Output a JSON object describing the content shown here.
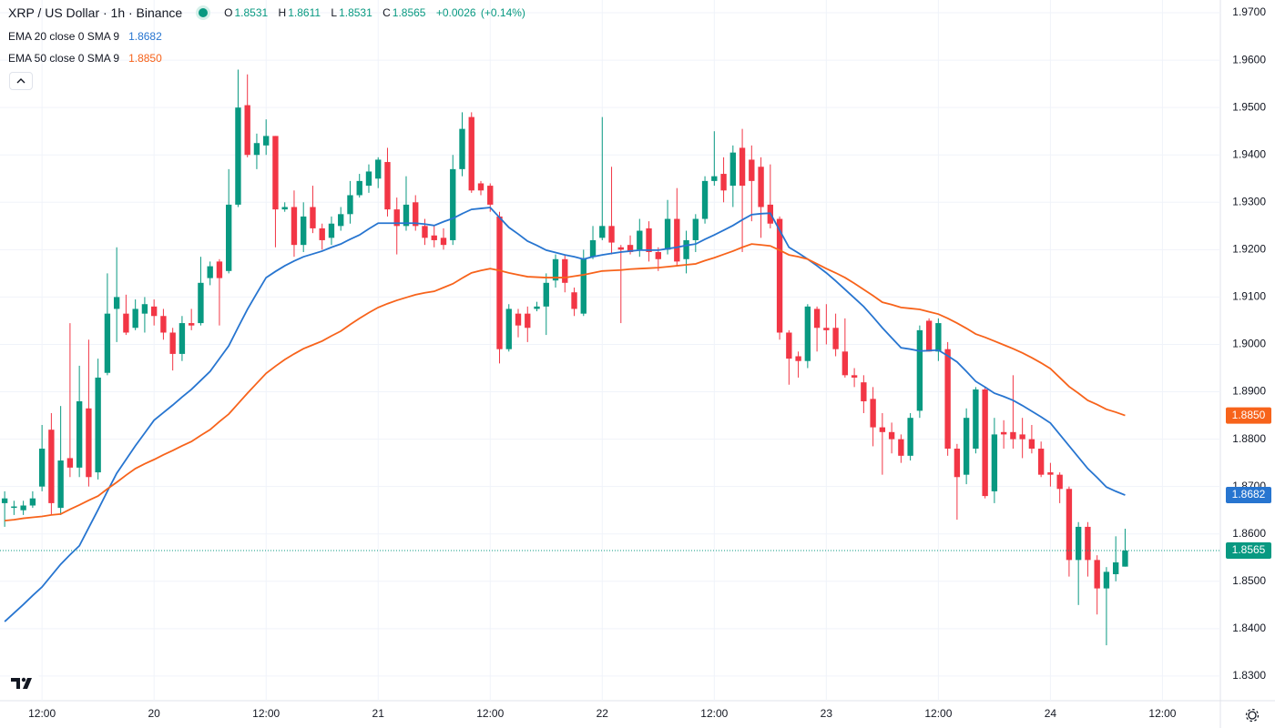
{
  "chart_data": {
    "type": "candlestick",
    "title": "XRP / US Dollar · 1h · Binance",
    "readout": [
      {
        "label": "O",
        "value": 1.8531
      },
      {
        "label": "H",
        "value": 1.8611
      },
      {
        "label": "L",
        "value": 1.8531
      },
      {
        "label": "C",
        "value": 1.8565
      }
    ],
    "change": "+0.0026",
    "change_percent": "(+0.14%)",
    "up_color": "#089981",
    "down_color": "#f23645",
    "last_price_label": "1.8565",
    "open": [
      1.8665,
      1.8655,
      1.865,
      1.866,
      1.87,
      1.882,
      1.8655,
      1.876,
      1.874,
      1.8865,
      1.873,
      1.894,
      1.9075,
      1.9065,
      1.9035,
      1.9065,
      1.908,
      1.906,
      1.9025,
      1.898,
      1.9045,
      1.9045,
      1.914,
      1.9175,
      1.9155,
      1.9295,
      1.9505,
      1.94,
      1.942,
      1.944,
      1.9285,
      1.929,
      1.921,
      1.929,
      1.9245,
      1.9225,
      1.925,
      1.9275,
      1.9315,
      1.9335,
      1.935,
      1.9385,
      1.9285,
      1.925,
      1.93,
      1.925,
      1.923,
      1.9225,
      1.922,
      1.937,
      1.948,
      1.934,
      1.9335,
      1.927,
      1.899,
      1.9065,
      1.9065,
      1.9075,
      1.908,
      1.9135,
      1.918,
      1.911,
      1.9065,
      1.9185,
      1.9225,
      1.925,
      1.9205,
      1.921,
      1.92,
      1.9245,
      1.9195,
      1.92,
      1.9265,
      1.918,
      1.922,
      1.9265,
      1.9345,
      1.936,
      1.9335,
      1.9415,
      1.939,
      1.9375,
      1.9295,
      1.9265,
      1.9025,
      1.8975,
      1.8965,
      1.9075,
      1.9035,
      1.9035,
      1.8985,
      1.8935,
      1.892,
      1.8885,
      1.8825,
      1.8815,
      1.88,
      1.8765,
      1.886,
      1.905,
      1.8985,
      1.899,
      1.878,
      1.8725,
      1.878,
      1.8905,
      1.869,
      1.8815,
      1.8815,
      1.881,
      1.88,
      1.878,
      1.873,
      1.8725,
      1.8695,
      1.8545,
      1.8615,
      1.8545,
      1.8485,
      1.8515,
      1.8531
    ],
    "high": [
      1.869,
      1.867,
      1.867,
      1.869,
      1.883,
      1.8855,
      1.887,
      1.9045,
      1.8955,
      1.901,
      1.897,
      1.915,
      1.9205,
      1.9105,
      1.9095,
      1.91,
      1.9095,
      1.9075,
      1.9035,
      1.906,
      1.9075,
      1.9185,
      1.9175,
      1.918,
      1.937,
      1.958,
      1.957,
      1.9445,
      1.9475,
      1.944,
      1.93,
      1.9325,
      1.93,
      1.9335,
      1.9255,
      1.927,
      1.929,
      1.9345,
      1.936,
      1.938,
      1.9395,
      1.9415,
      1.931,
      1.9355,
      1.9315,
      1.9265,
      1.925,
      1.9245,
      1.94,
      1.949,
      1.949,
      1.9345,
      1.934,
      1.928,
      1.9085,
      1.9075,
      1.908,
      1.909,
      1.915,
      1.919,
      1.919,
      1.912,
      1.92,
      1.925,
      1.948,
      1.9375,
      1.921,
      1.923,
      1.9265,
      1.926,
      1.9205,
      1.9305,
      1.933,
      1.924,
      1.9275,
      1.9355,
      1.945,
      1.9395,
      1.942,
      1.9455,
      1.942,
      1.9395,
      1.938,
      1.927,
      1.903,
      1.8985,
      1.9085,
      1.908,
      1.9085,
      1.9065,
      1.9055,
      1.895,
      1.8935,
      1.891,
      1.8855,
      1.8835,
      1.881,
      1.8855,
      1.904,
      1.9055,
      1.9055,
      1.9005,
      1.879,
      1.8865,
      1.891,
      1.891,
      1.8845,
      1.884,
      1.8935,
      1.8845,
      1.883,
      1.8795,
      1.875,
      1.873,
      1.87,
      1.8625,
      1.8625,
      1.8555,
      1.853,
      1.8595,
      1.8611
    ],
    "low": [
      1.8615,
      1.864,
      1.864,
      1.8655,
      1.869,
      1.864,
      1.864,
      1.872,
      1.872,
      1.87,
      1.8715,
      1.8935,
      1.9005,
      1.902,
      1.903,
      1.9025,
      1.904,
      1.901,
      1.8945,
      1.8965,
      1.903,
      1.904,
      1.9125,
      1.904,
      1.915,
      1.929,
      1.9395,
      1.937,
      1.94,
      1.9205,
      1.928,
      1.9185,
      1.9195,
      1.9235,
      1.92,
      1.921,
      1.924,
      1.9255,
      1.931,
      1.932,
      1.933,
      1.927,
      1.919,
      1.924,
      1.924,
      1.921,
      1.9205,
      1.92,
      1.921,
      1.9355,
      1.932,
      1.9315,
      1.928,
      1.896,
      1.8985,
      1.9015,
      1.9005,
      1.907,
      1.902,
      1.912,
      1.911,
      1.906,
      1.906,
      1.918,
      1.922,
      1.919,
      1.9045,
      1.919,
      1.9185,
      1.9175,
      1.9155,
      1.919,
      1.9165,
      1.915,
      1.9195,
      1.9255,
      1.9335,
      1.93,
      1.929,
      1.9195,
      1.926,
      1.9225,
      1.9245,
      1.901,
      1.8915,
      1.893,
      1.895,
      1.8985,
      1.9,
      1.8975,
      1.893,
      1.891,
      1.8855,
      1.8785,
      1.8725,
      1.877,
      1.875,
      1.8755,
      1.8845,
      1.8985,
      1.8965,
      1.8765,
      1.863,
      1.8705,
      1.877,
      1.8675,
      1.8665,
      1.878,
      1.878,
      1.876,
      1.877,
      1.872,
      1.87,
      1.8665,
      1.851,
      1.845,
      1.851,
      1.843,
      1.8365,
      1.85,
      1.8531
    ],
    "close": [
      1.8675,
      1.8658,
      1.866,
      1.8675,
      1.878,
      1.8665,
      1.8755,
      1.874,
      1.888,
      1.872,
      1.893,
      1.9065,
      1.91,
      1.9025,
      1.9075,
      1.9085,
      1.906,
      1.9025,
      1.898,
      1.9045,
      1.904,
      1.913,
      1.9165,
      1.914,
      1.9295,
      1.95,
      1.94,
      1.9425,
      1.944,
      1.9285,
      1.929,
      1.921,
      1.927,
      1.9245,
      1.922,
      1.9255,
      1.9275,
      1.9315,
      1.9345,
      1.9365,
      1.939,
      1.9285,
      1.925,
      1.9295,
      1.925,
      1.9225,
      1.922,
      1.921,
      1.937,
      1.9455,
      1.9325,
      1.9325,
      1.9295,
      1.899,
      1.9075,
      1.904,
      1.9035,
      1.908,
      1.913,
      1.918,
      1.913,
      1.9075,
      1.918,
      1.922,
      1.925,
      1.9215,
      1.92,
      1.9195,
      1.924,
      1.9195,
      1.918,
      1.9265,
      1.9175,
      1.922,
      1.9265,
      1.9345,
      1.9355,
      1.9325,
      1.9405,
      1.9335,
      1.9345,
      1.929,
      1.9255,
      1.9025,
      1.897,
      1.8965,
      1.908,
      1.9035,
      1.903,
      1.899,
      1.8935,
      1.893,
      1.888,
      1.8825,
      1.8815,
      1.88,
      1.8765,
      1.8845,
      1.903,
      1.8985,
      1.9045,
      1.878,
      1.872,
      1.8845,
      1.8905,
      1.868,
      1.881,
      1.881,
      1.88,
      1.88,
      1.878,
      1.8725,
      1.8725,
      1.8695,
      1.8545,
      1.8615,
      1.8545,
      1.8485,
      1.852,
      1.854,
      1.8565
    ],
    "indicators": [
      {
        "name": "EMA 20 close 0 SMA 9",
        "value_label": "1.8682",
        "color": "#2775d0",
        "values": [
          1.8415,
          1.8433,
          1.8451,
          1.847,
          1.8488,
          1.8512,
          1.8536,
          1.8556,
          1.8575,
          1.8613,
          1.8651,
          1.869,
          1.8728,
          1.8757,
          1.8786,
          1.8813,
          1.884,
          1.8856,
          1.8872,
          1.8889,
          1.8905,
          1.8924,
          1.8943,
          1.897,
          1.8997,
          1.9036,
          1.9074,
          1.9108,
          1.9141,
          1.9154,
          1.9166,
          1.9176,
          1.9185,
          1.9191,
          1.9197,
          1.9205,
          1.9212,
          1.9222,
          1.9231,
          1.9244,
          1.9256,
          1.9256,
          1.9256,
          1.9256,
          1.9256,
          1.9254,
          1.9251,
          1.9259,
          1.9266,
          1.9276,
          1.9285,
          1.9287,
          1.9289,
          1.9268,
          1.9247,
          1.9233,
          1.9218,
          1.9209,
          1.9199,
          1.9194,
          1.9189,
          1.9185,
          1.918,
          1.9185,
          1.9189,
          1.9192,
          1.9195,
          1.9197,
          1.9199,
          1.9199,
          1.9199,
          1.9202,
          1.9205,
          1.9209,
          1.9212,
          1.9222,
          1.9231,
          1.9241,
          1.9251,
          1.9263,
          1.9274,
          1.9276,
          1.9277,
          1.9241,
          1.9205,
          1.9193,
          1.918,
          1.9166,
          1.9151,
          1.9134,
          1.9116,
          1.9098,
          1.908,
          1.9058,
          1.9035,
          1.9014,
          1.8993,
          1.899,
          1.8986,
          1.8987,
          1.8988,
          1.8976,
          1.8963,
          1.8943,
          1.8922,
          1.891,
          1.8897,
          1.889,
          1.8882,
          1.8871,
          1.8859,
          1.8847,
          1.8834,
          1.881,
          1.8786,
          1.8762,
          1.8738,
          1.8719,
          1.8699,
          1.869,
          1.8682
        ]
      },
      {
        "name": "EMA 50 close 0 SMA 9",
        "value_label": "1.8850",
        "color": "#f7631b",
        "values": [
          1.8628,
          1.863,
          1.8633,
          1.8635,
          1.8637,
          1.864,
          1.8642,
          1.8652,
          1.8661,
          1.8671,
          1.868,
          1.8695,
          1.8709,
          1.8724,
          1.8738,
          1.8748,
          1.8757,
          1.8767,
          1.8776,
          1.8786,
          1.8795,
          1.8808,
          1.882,
          1.8837,
          1.8853,
          1.8875,
          1.8897,
          1.8918,
          1.8939,
          1.8954,
          1.8968,
          1.898,
          1.8991,
          1.8999,
          1.9007,
          1.9018,
          1.9028,
          1.9042,
          1.9055,
          1.9067,
          1.9078,
          1.9086,
          1.9093,
          1.9099,
          1.9105,
          1.9109,
          1.9112,
          1.912,
          1.9128,
          1.914,
          1.9151,
          1.9156,
          1.916,
          1.9156,
          1.9151,
          1.9147,
          1.9143,
          1.9142,
          1.9141,
          1.9141,
          1.9141,
          1.9144,
          1.9147,
          1.9151,
          1.9155,
          1.9156,
          1.9157,
          1.9159,
          1.916,
          1.9161,
          1.9162,
          1.9164,
          1.9166,
          1.9168,
          1.917,
          1.9177,
          1.9183,
          1.919,
          1.9197,
          1.9205,
          1.9212,
          1.921,
          1.9208,
          1.9199,
          1.9189,
          1.9185,
          1.918,
          1.917,
          1.916,
          1.9151,
          1.9141,
          1.9129,
          1.9116,
          1.9103,
          1.9089,
          1.9084,
          1.9078,
          1.9076,
          1.9074,
          1.9069,
          1.9064,
          1.9055,
          1.9045,
          1.9034,
          1.9022,
          1.9015,
          1.9007,
          1.8999,
          1.8991,
          1.8982,
          1.8972,
          1.8961,
          1.8949,
          1.893,
          1.8911,
          1.8897,
          1.8882,
          1.8873,
          1.8863,
          1.8857,
          1.885
        ]
      }
    ],
    "xlim": [
      -0.5,
      130.2
    ],
    "xticks": [
      {
        "value": 4,
        "label": "12:00"
      },
      {
        "value": 16,
        "label": "20"
      },
      {
        "value": 28,
        "label": "12:00"
      },
      {
        "value": 40,
        "label": "21"
      },
      {
        "value": 52,
        "label": "12:00"
      },
      {
        "value": 64,
        "label": "22"
      },
      {
        "value": 76,
        "label": "12:00"
      },
      {
        "value": 88,
        "label": "23"
      },
      {
        "value": 100,
        "label": "12:00"
      },
      {
        "value": 112,
        "label": "24"
      },
      {
        "value": 124,
        "label": "12:00"
      }
    ],
    "ylim": [
      1.8248,
      1.9727
    ],
    "yticks": [
      {
        "value": 1.83,
        "label": "1.8300"
      },
      {
        "value": 1.84,
        "label": "1.8400"
      },
      {
        "value": 1.85,
        "label": "1.8500"
      },
      {
        "value": 1.86,
        "label": "1.8600"
      },
      {
        "value": 1.87,
        "label": "1.8700"
      },
      {
        "value": 1.88,
        "label": "1.8800"
      },
      {
        "value": 1.89,
        "label": "1.8900"
      },
      {
        "value": 1.9,
        "label": "1.9000"
      },
      {
        "value": 1.91,
        "label": "1.9100"
      },
      {
        "value": 1.92,
        "label": "1.9200"
      },
      {
        "value": 1.93,
        "label": "1.9300"
      },
      {
        "value": 1.94,
        "label": "1.9400"
      },
      {
        "value": 1.95,
        "label": "1.9500"
      },
      {
        "value": 1.96,
        "label": "1.9600"
      },
      {
        "value": 1.97,
        "label": "1.9700"
      }
    ],
    "grid": true
  }
}
